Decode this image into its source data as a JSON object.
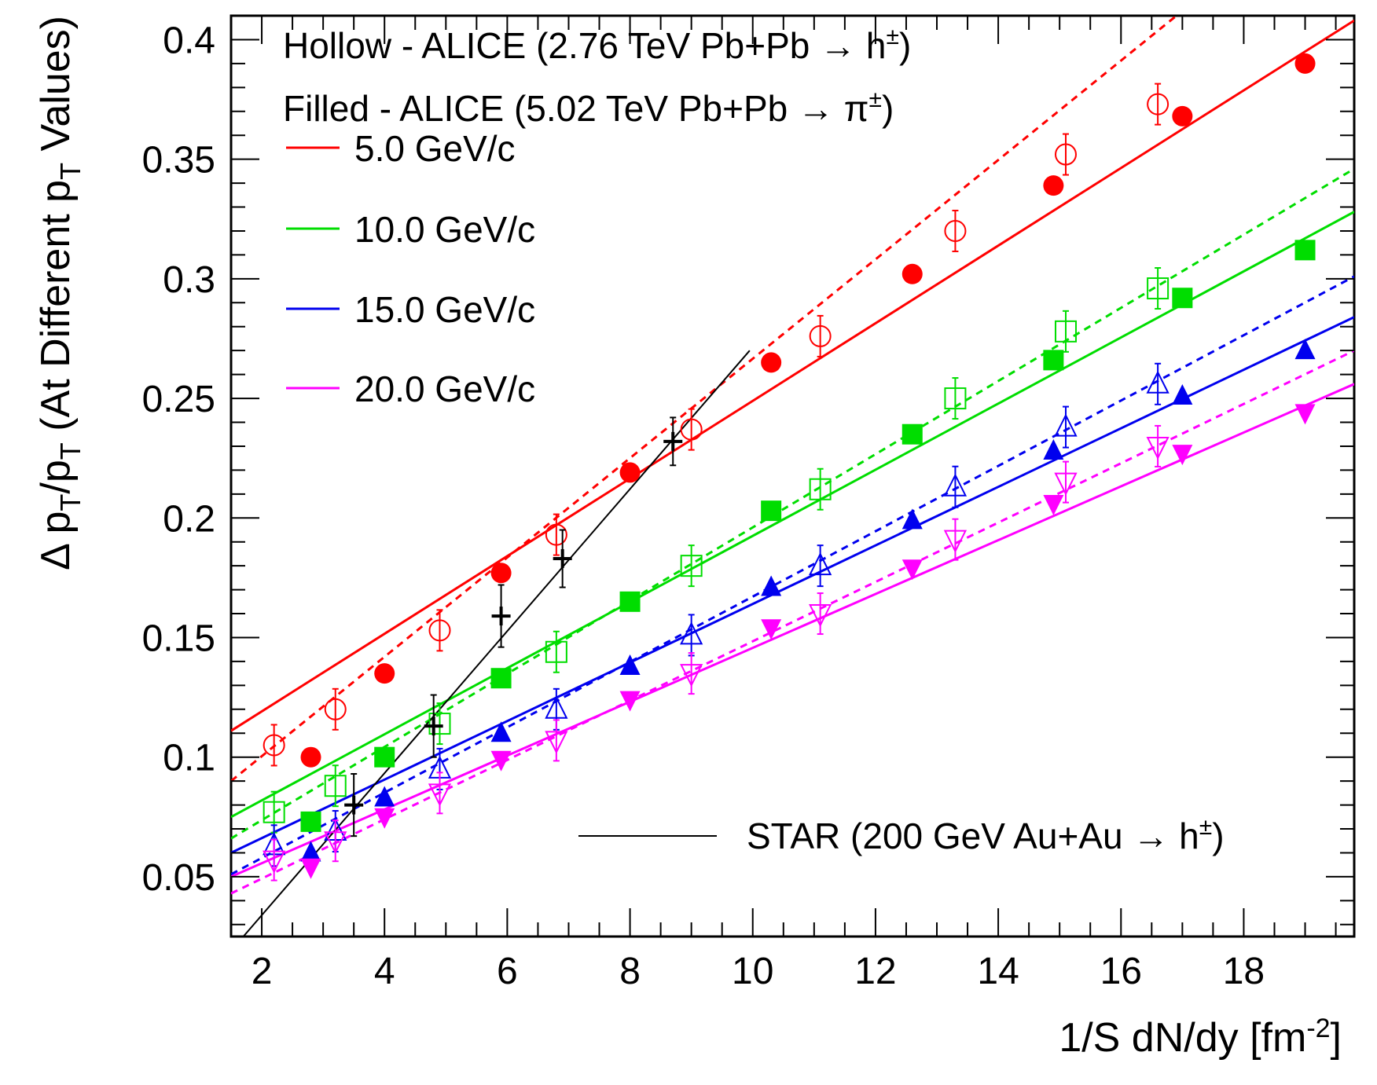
{
  "chart_data": {
    "type": "scatter",
    "xlabel": "1/S dN/dy [fm",
    "xlabel_sup": "-2",
    "xlabel_end": "]",
    "ylabel_parts": {
      "p1": "Δ p",
      "sub1": "T",
      "slash": "/p",
      "sub2": "T",
      "mid": " (At Different p",
      "sub3": "T",
      "end": " Values)"
    },
    "xlim": [
      1.5,
      19.8
    ],
    "ylim": [
      0.025,
      0.41
    ],
    "xticks": [
      2,
      4,
      6,
      8,
      10,
      12,
      14,
      16,
      18
    ],
    "xtick_labels": [
      "2",
      "4",
      "6",
      "8",
      "10",
      "12",
      "14",
      "16",
      "18"
    ],
    "yticks": [
      0.05,
      0.1,
      0.15,
      0.2,
      0.25,
      0.3,
      0.35,
      0.4
    ],
    "ytick_labels": [
      "0.05",
      "0.1",
      "0.15",
      "0.2",
      "0.25",
      "0.3",
      "0.35",
      "0.4"
    ],
    "grid": false,
    "legend_header": {
      "hollow": "Hollow - ALICE (2.76 TeV Pb+Pb → h",
      "hollow_sup": "±",
      "hollow_end": ")",
      "filled": "Filled - ALICE (5.02 TeV Pb+Pb → π",
      "filled_sup": "±",
      "filled_end": ")"
    },
    "star_legend": {
      "label": "STAR (200 GeV Au+Au → h",
      "sup": "±",
      "end": ")"
    },
    "series": [
      {
        "name": "5.0 GeV/c",
        "color": "#ff0000",
        "marker": "circle",
        "filled": [
          [
            2.8,
            0.1
          ],
          [
            4.0,
            0.135
          ],
          [
            5.9,
            0.177
          ],
          [
            8.0,
            0.219
          ],
          [
            10.3,
            0.265
          ],
          [
            12.6,
            0.302
          ],
          [
            14.9,
            0.339
          ],
          [
            17.0,
            0.368
          ],
          [
            19.0,
            0.39
          ]
        ],
        "hollow": [
          [
            2.2,
            0.105
          ],
          [
            3.2,
            0.12
          ],
          [
            4.9,
            0.153
          ],
          [
            6.8,
            0.193
          ],
          [
            9.0,
            0.237
          ],
          [
            11.1,
            0.276
          ],
          [
            13.3,
            0.32
          ],
          [
            15.1,
            0.352
          ],
          [
            16.6,
            0.373
          ]
        ],
        "fit_filled": [
          [
            1.5,
            0.111
          ],
          [
            19.8,
            0.408
          ]
        ],
        "fit_hollow": [
          [
            1.5,
            0.09
          ],
          [
            17.0,
            0.412
          ]
        ]
      },
      {
        "name": "10.0 GeV/c",
        "color": "#00dd00",
        "marker": "square",
        "filled": [
          [
            2.8,
            0.073
          ],
          [
            4.0,
            0.1
          ],
          [
            5.9,
            0.133
          ],
          [
            8.0,
            0.165
          ],
          [
            10.3,
            0.203
          ],
          [
            12.6,
            0.235
          ],
          [
            14.9,
            0.266
          ],
          [
            17.0,
            0.292
          ],
          [
            19.0,
            0.312
          ]
        ],
        "hollow": [
          [
            2.2,
            0.077
          ],
          [
            3.2,
            0.088
          ],
          [
            4.9,
            0.114
          ],
          [
            6.8,
            0.144
          ],
          [
            9.0,
            0.18
          ],
          [
            11.1,
            0.212
          ],
          [
            13.3,
            0.25
          ],
          [
            15.1,
            0.278
          ],
          [
            16.6,
            0.296
          ]
        ],
        "fit_filled": [
          [
            1.5,
            0.075
          ],
          [
            19.8,
            0.328
          ]
        ],
        "fit_hollow": [
          [
            1.5,
            0.066
          ],
          [
            19.8,
            0.346
          ]
        ]
      },
      {
        "name": "15.0 GeV/c",
        "color": "#0000ee",
        "marker": "triangle-up",
        "filled": [
          [
            2.8,
            0.06
          ],
          [
            4.0,
            0.083
          ],
          [
            5.9,
            0.11
          ],
          [
            8.0,
            0.138
          ],
          [
            10.3,
            0.171
          ],
          [
            12.6,
            0.199
          ],
          [
            14.9,
            0.228
          ],
          [
            17.0,
            0.251
          ],
          [
            19.0,
            0.27
          ]
        ],
        "hollow": [
          [
            2.2,
            0.063
          ],
          [
            3.2,
            0.069
          ],
          [
            4.9,
            0.095
          ],
          [
            6.8,
            0.12
          ],
          [
            9.0,
            0.151
          ],
          [
            11.1,
            0.18
          ],
          [
            13.3,
            0.213
          ],
          [
            15.1,
            0.238
          ],
          [
            16.6,
            0.256
          ]
        ],
        "fit_filled": [
          [
            1.5,
            0.06
          ],
          [
            19.8,
            0.284
          ]
        ],
        "fit_hollow": [
          [
            1.5,
            0.051
          ],
          [
            19.8,
            0.301
          ]
        ]
      },
      {
        "name": "20.0 GeV/c",
        "color": "#ff00ff",
        "marker": "triangle-down",
        "filled": [
          [
            2.8,
            0.054
          ],
          [
            4.0,
            0.075
          ],
          [
            5.9,
            0.099
          ],
          [
            8.0,
            0.124
          ],
          [
            10.3,
            0.154
          ],
          [
            12.6,
            0.179
          ],
          [
            14.9,
            0.206
          ],
          [
            17.0,
            0.227
          ],
          [
            19.0,
            0.244
          ]
        ],
        "hollow": [
          [
            2.2,
            0.057
          ],
          [
            3.2,
            0.065
          ],
          [
            4.9,
            0.085
          ],
          [
            6.8,
            0.107
          ],
          [
            9.0,
            0.135
          ],
          [
            11.1,
            0.16
          ],
          [
            13.3,
            0.191
          ],
          [
            15.1,
            0.215
          ],
          [
            16.6,
            0.23
          ]
        ],
        "fit_filled": [
          [
            1.5,
            0.05
          ],
          [
            19.8,
            0.256
          ]
        ],
        "fit_hollow": [
          [
            1.5,
            0.043
          ],
          [
            19.8,
            0.27
          ]
        ]
      },
      {
        "name": "STAR (200 GeV Au+Au → h±)",
        "color": "#000000",
        "marker": "cross",
        "points": [
          [
            3.5,
            0.08
          ],
          [
            4.8,
            0.113
          ],
          [
            5.9,
            0.159
          ],
          [
            6.9,
            0.183
          ],
          [
            8.7,
            0.232
          ]
        ],
        "errors": [
          0.013,
          0.013,
          0.013,
          0.012,
          0.01
        ],
        "fit": [
          [
            1.7,
            0.025
          ],
          [
            9.95,
            0.27
          ]
        ]
      }
    ]
  }
}
